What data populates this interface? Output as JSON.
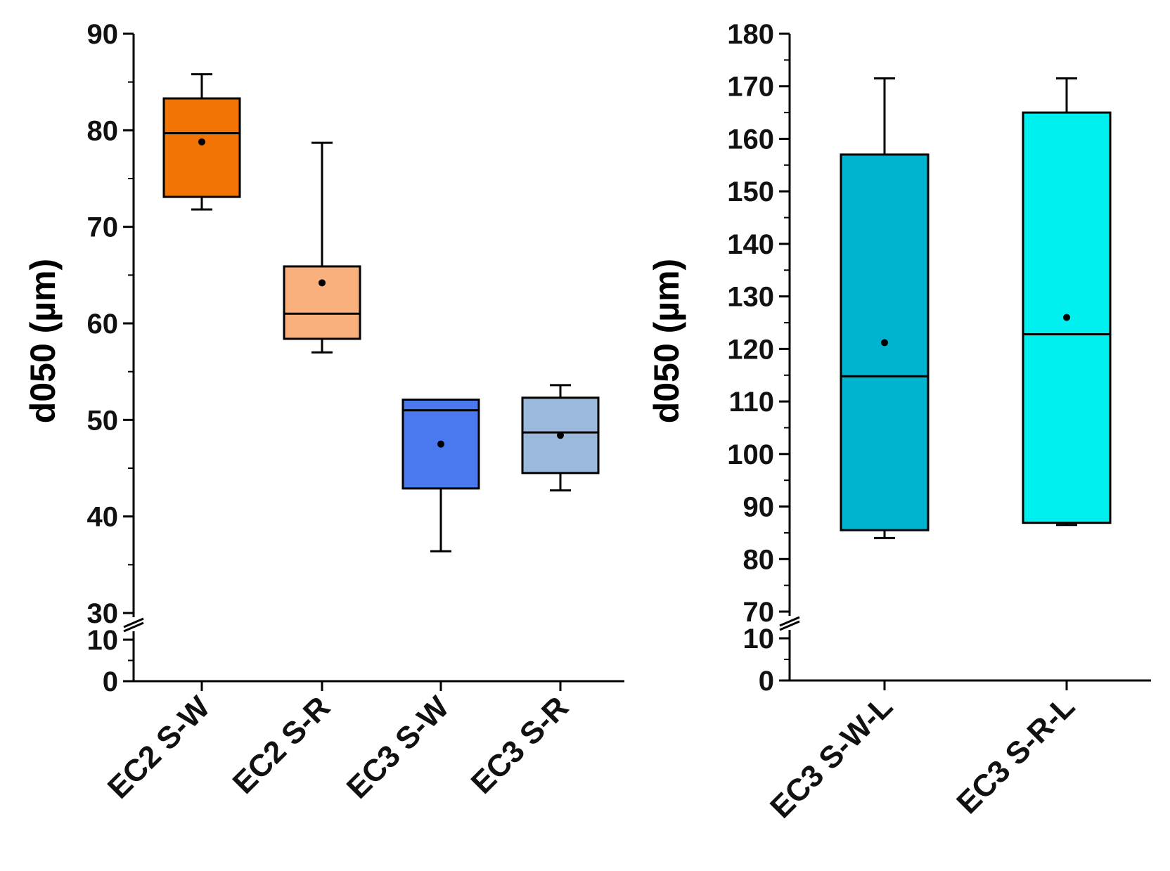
{
  "chart_data": [
    {
      "type": "box",
      "ylabel": "d050 (µm)",
      "axis_break": {
        "from": 10,
        "to": 30
      },
      "y_ticks": [
        0,
        10,
        30,
        40,
        50,
        60,
        70,
        80,
        90
      ],
      "ylim": [
        0,
        90
      ],
      "categories": [
        "EC2 S-W",
        "EC2 S-R",
        "EC3 S-W",
        "EC3 S-R"
      ],
      "boxes": [
        {
          "name": "EC2 S-W",
          "color": "#f27405",
          "whisker_low": 71.8,
          "q1": 73.1,
          "median": 79.7,
          "q3": 83.3,
          "whisker_high": 85.8,
          "mean": 78.8
        },
        {
          "name": "EC2 S-R",
          "color": "#f9b07d",
          "whisker_low": 57.0,
          "q1": 58.4,
          "median": 61.0,
          "q3": 65.9,
          "whisker_high": 78.7,
          "mean": 64.2
        },
        {
          "name": "EC3 S-W",
          "color": "#4a78ee",
          "whisker_low": 36.4,
          "q1": 42.9,
          "median": 51.0,
          "q3": 52.1,
          "whisker_high": 52.1,
          "mean": 47.5
        },
        {
          "name": "EC3 S-R",
          "color": "#9ab9dc",
          "whisker_low": 42.7,
          "q1": 44.5,
          "median": 48.7,
          "q3": 52.3,
          "whisker_high": 53.6,
          "mean": 48.4
        }
      ]
    },
    {
      "type": "box",
      "ylabel": "d050 (µm)",
      "axis_break": {
        "from": 10,
        "to": 70
      },
      "y_ticks": [
        0,
        10,
        70,
        80,
        90,
        100,
        110,
        120,
        130,
        140,
        150,
        160,
        170,
        180
      ],
      "ylim": [
        0,
        180
      ],
      "categories": [
        "EC3 S-W-L",
        "EC3 S-R-L"
      ],
      "boxes": [
        {
          "name": "EC3 S-W-L",
          "color": "#00b4d0",
          "whisker_low": 84.0,
          "q1": 85.5,
          "median": 114.8,
          "q3": 157.0,
          "whisker_high": 171.5,
          "mean": 121.2
        },
        {
          "name": "EC3 S-R-L",
          "color": "#00f0f0",
          "whisker_low": 86.5,
          "q1": 86.9,
          "median": 122.8,
          "q3": 165.0,
          "whisker_high": 171.5,
          "mean": 126.0
        }
      ]
    }
  ]
}
